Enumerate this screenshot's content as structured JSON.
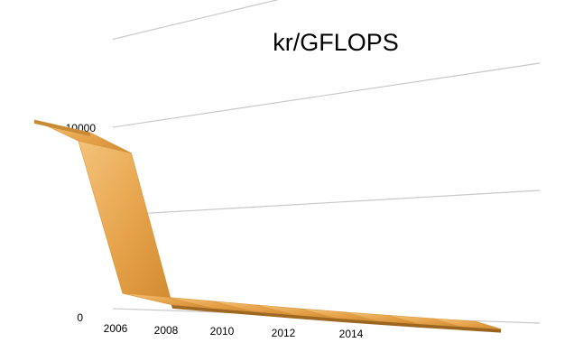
{
  "chart_data": {
    "type": "line",
    "style": "3d-ribbon",
    "title": "kr/GFLOPS",
    "xlabel": "",
    "ylabel": "",
    "x": [
      2006,
      2007,
      2008,
      2009,
      2010,
      2011,
      2012,
      2013,
      2014,
      2015,
      2016
    ],
    "x_tick_labels": [
      "2006",
      "2008",
      "2010",
      "2012",
      "2014"
    ],
    "y_tick_labels": [
      "0",
      "10000"
    ],
    "ylim": [
      0,
      20000
    ],
    "grid": true,
    "legend": "none",
    "series": [
      {
        "values": [
          9800,
          9000,
          300,
          250,
          200,
          150,
          100,
          70,
          50,
          40,
          30
        ],
        "color": "#e8a84a"
      }
    ]
  }
}
